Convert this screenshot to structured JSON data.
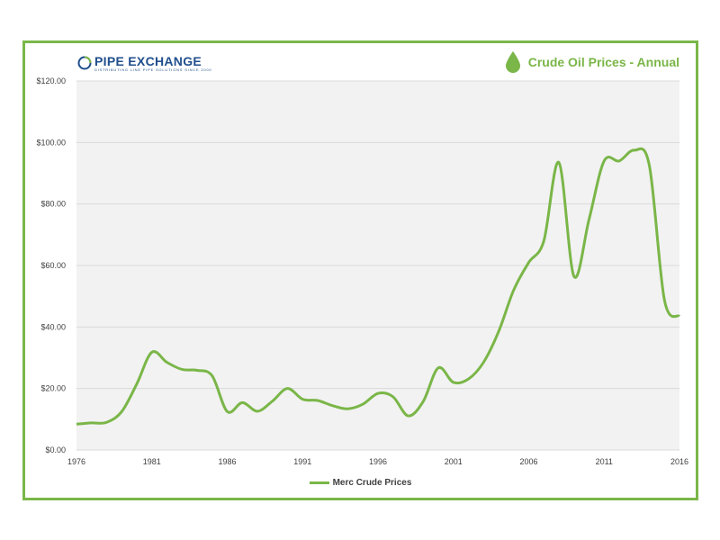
{
  "brand": {
    "name": "PIPE EXCHANGE",
    "tagline": "DISTRIBUTING LINE PIPE SOLUTIONS SINCE 2000"
  },
  "colors": {
    "accent": "#7ab648",
    "brand": "#1f4e8c",
    "grid": "#d9d9d9",
    "plot_bg": "#f2f2f2"
  },
  "chart_data": {
    "type": "line",
    "title": "Crude Oil Prices - Annual",
    "xlabel": "",
    "ylabel": "",
    "x_ticks": [
      "1976",
      "1981",
      "1986",
      "1991",
      "1996",
      "2001",
      "2006",
      "2011",
      "2016"
    ],
    "y_ticks": [
      "$0.00",
      "$20.00",
      "$40.00",
      "$60.00",
      "$80.00",
      "$100.00",
      "$120.00"
    ],
    "xlim": [
      1976,
      2016
    ],
    "ylim": [
      0,
      120
    ],
    "legend": "bottom-center",
    "series": [
      {
        "name": "Merc Crude Prices",
        "x": [
          1976,
          1977,
          1978,
          1979,
          1980,
          1981,
          1982,
          1983,
          1984,
          1985,
          1986,
          1987,
          1988,
          1989,
          1990,
          1991,
          1992,
          1993,
          1994,
          1995,
          1996,
          1997,
          1998,
          1999,
          2000,
          2001,
          2002,
          2003,
          2004,
          2005,
          2006,
          2007,
          2008,
          2009,
          2010,
          2011,
          2012,
          2013,
          2014,
          2015,
          2016
        ],
        "values": [
          8.4,
          8.8,
          9.0,
          12.5,
          21.5,
          31.8,
          28.5,
          26.2,
          25.9,
          24.1,
          12.5,
          15.4,
          12.6,
          15.9,
          20.0,
          16.5,
          16.1,
          14.4,
          13.4,
          14.9,
          18.4,
          17.3,
          11.1,
          15.8,
          26.7,
          22.0,
          23.1,
          28.5,
          38.5,
          52.0,
          61.0,
          68.0,
          93.5,
          56.5,
          75.0,
          94.0,
          94.0,
          97.5,
          92.5,
          48.8,
          43.5
        ]
      }
    ]
  }
}
